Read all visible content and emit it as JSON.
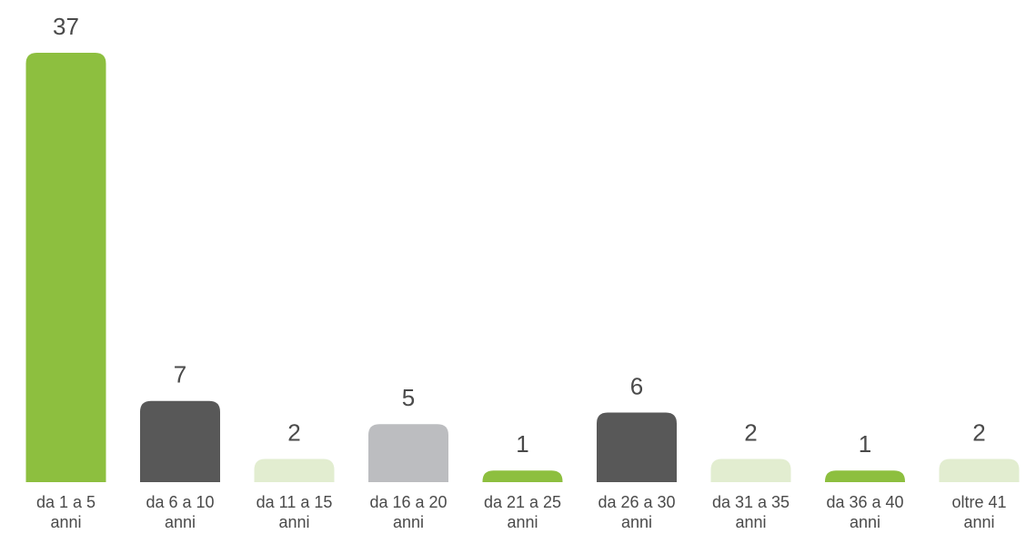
{
  "chart_data": {
    "type": "bar",
    "categories": [
      [
        "da 1 a 5",
        "anni"
      ],
      [
        "da 6 a 10",
        "anni"
      ],
      [
        "da 11 a 15",
        "anni"
      ],
      [
        "da 16 a 20",
        "anni"
      ],
      [
        "da 21 a 25",
        "anni"
      ],
      [
        "da 26 a 30",
        "anni"
      ],
      [
        "da 31 a 35",
        "anni"
      ],
      [
        "da 36 a 40",
        "anni"
      ],
      [
        "oltre 41",
        "anni"
      ]
    ],
    "values": [
      37,
      7,
      2,
      5,
      1,
      6,
      2,
      1,
      2
    ],
    "bar_colors": [
      "#8dbf3f",
      "#585858",
      "#e2edd0",
      "#bcbdc0",
      "#8dbf3f",
      "#585858",
      "#e2edd0",
      "#8dbf3f",
      "#e2edd0"
    ],
    "ylim": [
      0,
      37
    ],
    "grid": false,
    "legend": "none"
  }
}
